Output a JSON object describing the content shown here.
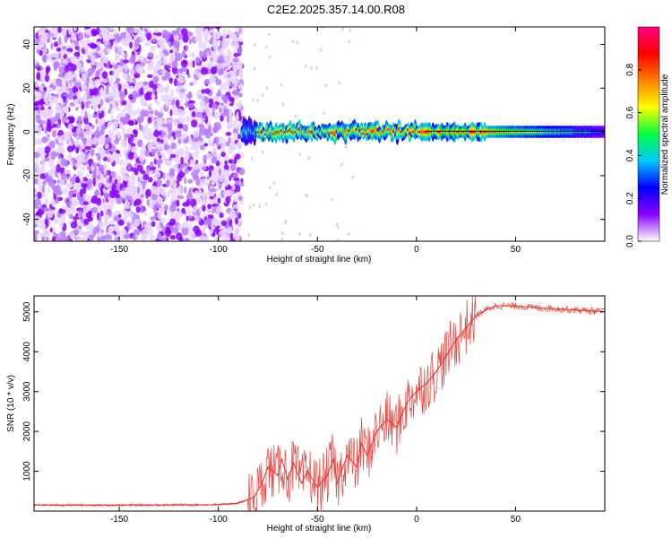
{
  "figure": {
    "title": "C2E2.2025.357.14.00.R08"
  },
  "colors": {
    "snr_line": "#e8302a",
    "frame": "#000000",
    "background": "#ffffff"
  },
  "chart_data": [
    {
      "type": "heatmap",
      "name": "spectrogram",
      "xlabel": "Height of straight line (km)",
      "ylabel": "Frequency (Hz)",
      "xlim": [
        -193,
        95
      ],
      "ylim": [
        -50,
        48
      ],
      "xticks": [
        -150,
        -100,
        -50,
        0,
        50
      ],
      "yticks": [
        -40,
        -20,
        0,
        20,
        40
      ],
      "signal_band": {
        "center_hz": 0,
        "noise_region_x": [
          -193,
          -88
        ],
        "onset_x": -88,
        "strong_region_x": [
          -80,
          35
        ],
        "weak_tail_x": [
          35,
          95
        ]
      },
      "colorbar": {
        "label": "Normalized spectral amplitude",
        "range": [
          0,
          1
        ],
        "ticks": [
          0.0,
          0.2,
          0.4,
          0.6,
          0.8
        ],
        "tick_labels": [
          "0.0",
          "0.2",
          "0.4",
          "0.6",
          "0.8"
        ],
        "colormap": [
          "#ffffff",
          "#8a00ff",
          "#0000ff",
          "#00c8ff",
          "#00ff40",
          "#ffff00",
          "#ff8000",
          "#ff0000",
          "#ff0080"
        ]
      }
    },
    {
      "type": "line",
      "name": "snr",
      "xlabel": "Height of straight line (km)",
      "ylabel": "SNR (10 * v/v)",
      "xlim": [
        -193,
        95
      ],
      "ylim": [
        0,
        5400
      ],
      "xticks": [
        -150,
        -100,
        -50,
        0,
        50
      ],
      "yticks": [
        1000,
        2000,
        3000,
        4000,
        5000
      ],
      "series": [
        {
          "name": "SNR",
          "x": [
            -193,
            -150,
            -100,
            -90,
            -82,
            -78,
            -75,
            -70,
            -68,
            -65,
            -62,
            -58,
            -55,
            -50,
            -45,
            -42,
            -40,
            -35,
            -30,
            -28,
            -25,
            -20,
            -15,
            -10,
            -5,
            -2,
            0,
            5,
            10,
            15,
            20,
            25,
            30,
            35,
            40,
            50,
            60,
            70,
            80,
            95
          ],
          "y": [
            150,
            150,
            160,
            200,
            350,
            700,
            1100,
            900,
            1300,
            800,
            1200,
            700,
            1000,
            600,
            900,
            1300,
            700,
            1400,
            1100,
            1700,
            1400,
            2000,
            2300,
            2100,
            2700,
            2900,
            3000,
            3200,
            3500,
            3900,
            4300,
            4600,
            4900,
            5050,
            5150,
            5150,
            5100,
            5080,
            5050,
            5000
          ]
        }
      ]
    }
  ]
}
